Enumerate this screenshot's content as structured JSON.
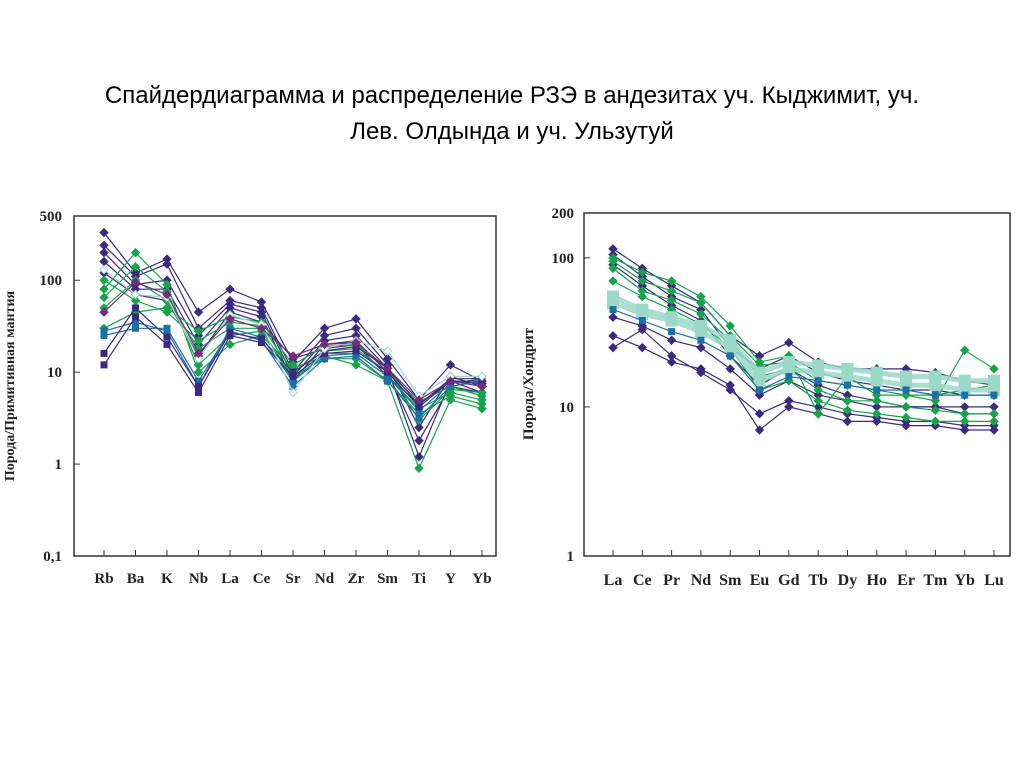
{
  "title": {
    "line1": "Спайдердиаграмма и распределение РЗЭ в андезитах уч. Кыджимит, уч.",
    "line2": "Лев. Олдында и уч. Ульзутуй"
  },
  "colors": {
    "dark_purple": "#3b2a7d",
    "green": "#16a34a",
    "teal_blue": "#1d6fa8",
    "light_teal": "#9bd8c8",
    "magenta": "#7a2a7a"
  },
  "chart_data": [
    {
      "type": "line",
      "scale": "log",
      "ylabel": "Порода/Примитивная мантия",
      "xlabel": "",
      "ylim": [
        0.1,
        500
      ],
      "ytick_labels": [
        {
          "value": 500,
          "label": "500"
        },
        {
          "value": 100,
          "label": "100"
        },
        {
          "value": 10,
          "label": "10"
        },
        {
          "value": 1,
          "label": "1"
        },
        {
          "value": 0.1,
          "label": "0,1"
        }
      ],
      "categories": [
        "Rb",
        "Ba",
        "K",
        "Nb",
        "La",
        "Ce",
        "Sr",
        "Nd",
        "Zr",
        "Sm",
        "Ti",
        "Y",
        "Yb"
      ],
      "series": [
        {
          "color": "#3b2a7d",
          "marker": "diamond",
          "values": [
            330,
            120,
            170,
            45,
            80,
            58,
            13,
            30,
            38,
            14,
            5,
            12,
            8
          ]
        },
        {
          "color": "#3b2a7d",
          "marker": "diamond",
          "values": [
            240,
            110,
            150,
            30,
            60,
            50,
            10,
            25,
            30,
            12,
            2.5,
            9,
            7
          ]
        },
        {
          "color": "#3b2a7d",
          "marker": "diamond",
          "values": [
            200,
            90,
            100,
            25,
            55,
            45,
            9,
            22,
            25,
            11,
            1.2,
            8,
            6
          ]
        },
        {
          "color": "#3b2a7d",
          "marker": "diamond",
          "values": [
            160,
            80,
            80,
            20,
            50,
            40,
            8,
            20,
            22,
            10,
            1.8,
            7,
            6
          ]
        },
        {
          "color": "#3b2a7d",
          "marker": "diamond",
          "values": [
            120,
            70,
            60,
            15,
            45,
            35,
            14,
            18,
            20,
            9,
            4.5,
            8,
            7.5
          ]
        },
        {
          "color": "#16a34a",
          "marker": "diamond",
          "values": [
            80,
            200,
            90,
            10,
            20,
            25,
            11,
            15,
            12,
            8,
            0.9,
            5,
            4
          ]
        },
        {
          "color": "#16a34a",
          "marker": "diamond",
          "values": [
            65,
            140,
            75,
            12,
            25,
            28,
            9,
            14,
            14,
            8,
            3.5,
            5.5,
            4.5
          ]
        },
        {
          "color": "#16a34a",
          "marker": "diamond",
          "values": [
            50,
            100,
            60,
            18,
            30,
            30,
            8,
            16,
            16,
            9,
            4,
            6,
            5
          ]
        },
        {
          "color": "#16a34a",
          "marker": "diamond",
          "values": [
            100,
            60,
            45,
            22,
            35,
            32,
            10,
            17,
            18,
            10,
            4.8,
            7,
            5.5
          ]
        },
        {
          "color": "#16a34a",
          "marker": "diamond",
          "values": [
            30,
            45,
            50,
            28,
            40,
            35,
            12,
            19,
            20,
            11,
            3,
            6.5,
            6
          ]
        },
        {
          "color": "#1d6fa8",
          "marker": "square",
          "values": [
            25,
            30,
            30,
            8,
            28,
            22,
            7,
            14,
            15,
            8,
            3.2,
            7,
            8
          ]
        },
        {
          "color": "#1d6fa8",
          "marker": "square",
          "values": [
            28,
            35,
            28,
            7,
            30,
            24,
            8,
            15,
            16,
            9,
            3.8,
            7.5,
            8.5
          ]
        },
        {
          "color": "#3b2a7d",
          "marker": "square",
          "values": [
            12,
            40,
            20,
            6,
            25,
            21,
            9,
            16,
            17,
            10,
            4.2,
            8,
            8
          ]
        },
        {
          "color": "#3b2a7d",
          "marker": "square",
          "values": [
            16,
            50,
            24,
            7,
            27,
            23,
            10,
            17,
            19,
            11,
            4.4,
            8.5,
            8.5
          ]
        },
        {
          "color": "#9bd8c8",
          "marker": "diamond-open",
          "values": [
            130,
            70,
            65,
            14,
            42,
            33,
            6,
            18,
            22,
            17,
            5.5,
            9,
            9
          ]
        },
        {
          "color": "#7a2a7a",
          "marker": "diamond",
          "values": [
            45,
            95,
            70,
            16,
            38,
            30,
            15,
            20,
            21,
            11,
            5,
            8,
            7
          ]
        }
      ]
    },
    {
      "type": "line",
      "scale": "log",
      "ylabel": "Порода/Хондрит",
      "xlabel": "",
      "ylim": [
        1,
        200
      ],
      "ytick_labels": [
        {
          "value": 200,
          "label": "200"
        },
        {
          "value": 100,
          "label": "100"
        },
        {
          "value": 10,
          "label": "10"
        },
        {
          "value": 1,
          "label": "1"
        }
      ],
      "categories": [
        "La",
        "Ce",
        "Pr",
        "Nd",
        "Sm",
        "Eu",
        "Gd",
        "Tb",
        "Dy",
        "Ho",
        "Er",
        "Tm",
        "Yb",
        "Lu"
      ],
      "series": [
        {
          "color": "#3b2a7d",
          "marker": "diamond",
          "values": [
            115,
            85,
            65,
            50,
            30,
            22,
            27,
            20,
            18,
            18,
            18,
            17,
            15,
            14
          ]
        },
        {
          "color": "#3b2a7d",
          "marker": "diamond",
          "values": [
            105,
            75,
            55,
            45,
            25,
            18,
            22,
            17,
            15,
            14,
            13,
            13,
            12,
            12
          ]
        },
        {
          "color": "#3b2a7d",
          "marker": "diamond",
          "values": [
            90,
            65,
            48,
            38,
            22,
            14,
            18,
            14,
            12,
            11,
            10,
            10,
            9,
            9
          ]
        },
        {
          "color": "#3b2a7d",
          "marker": "diamond",
          "values": [
            40,
            35,
            28,
            25,
            18,
            12,
            15,
            12,
            11,
            10,
            10,
            10,
            10,
            10
          ]
        },
        {
          "color": "#3b2a7d",
          "marker": "diamond",
          "values": [
            30,
            25,
            20,
            18,
            14,
            7,
            10,
            9,
            8,
            8,
            7.5,
            7.5,
            7,
            7
          ]
        },
        {
          "color": "#3b2a7d",
          "marker": "diamond",
          "values": [
            25,
            33,
            22,
            17,
            13,
            9,
            11,
            10,
            9,
            8.5,
            8,
            8,
            7.5,
            7.5
          ]
        },
        {
          "color": "#16a34a",
          "marker": "diamond",
          "values": [
            100,
            80,
            70,
            55,
            35,
            20,
            22,
            9,
            16,
            12,
            12,
            11,
            24,
            18
          ]
        },
        {
          "color": "#16a34a",
          "marker": "diamond",
          "values": [
            95,
            70,
            60,
            50,
            30,
            19,
            20,
            15,
            14,
            13,
            12,
            12,
            13,
            14
          ]
        },
        {
          "color": "#16a34a",
          "marker": "diamond",
          "values": [
            85,
            60,
            52,
            42,
            28,
            16,
            18,
            13,
            11,
            11,
            10,
            9.5,
            9,
            9
          ]
        },
        {
          "color": "#16a34a",
          "marker": "diamond",
          "values": [
            70,
            55,
            45,
            36,
            25,
            13,
            15,
            11,
            9.5,
            9,
            8.5,
            8,
            8,
            8
          ]
        },
        {
          "color": "#9bd8c8",
          "marker": "square-thick",
          "values": [
            50,
            42,
            38,
            32,
            25,
            15,
            18,
            17,
            16,
            15,
            14,
            14,
            13,
            13
          ]
        },
        {
          "color": "#9bd8c8",
          "marker": "square-thick",
          "values": [
            55,
            45,
            40,
            35,
            28,
            17,
            20,
            19,
            18,
            17,
            16,
            16,
            15,
            15
          ]
        },
        {
          "color": "#1d6fa8",
          "marker": "square",
          "values": [
            45,
            38,
            32,
            28,
            22,
            13,
            16,
            15,
            14,
            13,
            13,
            12,
            12,
            12
          ]
        }
      ]
    }
  ]
}
